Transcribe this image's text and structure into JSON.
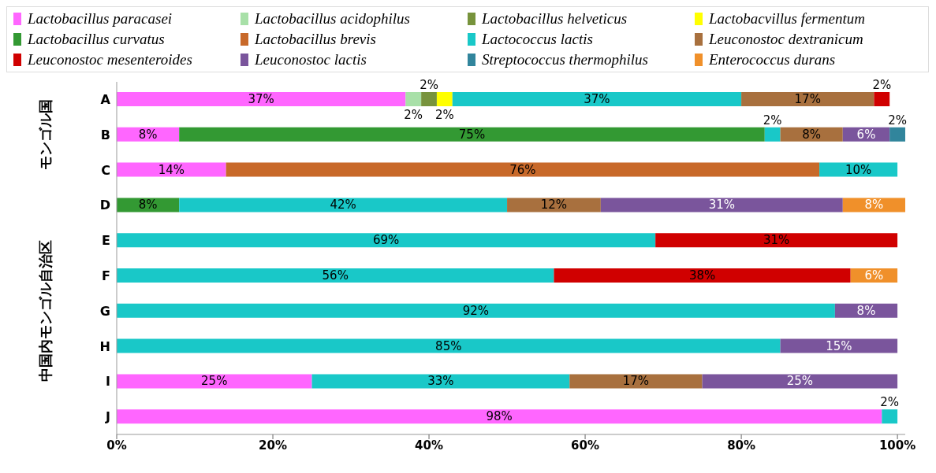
{
  "chart_data": {
    "type": "bar",
    "orientation": "horizontal",
    "stacked": true,
    "categories": [
      "A",
      "B",
      "C",
      "D",
      "E",
      "F",
      "G",
      "H",
      "I",
      "J"
    ],
    "xlim": [
      0,
      101
    ],
    "xticks": [
      {
        "value": 0,
        "label": "0%"
      },
      {
        "value": 20,
        "label": "20%"
      },
      {
        "value": 40,
        "label": "40%"
      },
      {
        "value": 60,
        "label": "60%"
      },
      {
        "value": 80,
        "label": "80%"
      },
      {
        "value": 100,
        "label": "100%"
      }
    ],
    "legend": "top",
    "grid": false,
    "annotations": [
      "モンゴル国",
      "中国内モンゴル自治区"
    ],
    "series": [
      {
        "name": "Lactobacillus paracasei",
        "color": "#ff66ff",
        "values": [
          37,
          8,
          14,
          null,
          null,
          null,
          null,
          null,
          25,
          98
        ],
        "value_labels": [
          "37%",
          "8%",
          "14%",
          null,
          null,
          null,
          null,
          null,
          "25%",
          "98%"
        ]
      },
      {
        "name": "Lactobacillus acidophilus",
        "color": "#a8e0a8",
        "values": [
          2,
          null,
          null,
          null,
          null,
          null,
          null,
          null,
          null,
          null
        ],
        "value_labels": [
          "2%",
          null,
          null,
          null,
          null,
          null,
          null,
          null,
          null,
          null
        ]
      },
      {
        "name": "Lactobacillus helveticus",
        "color": "#77933c",
        "values": [
          2,
          null,
          null,
          null,
          null,
          null,
          null,
          null,
          null,
          null
        ],
        "value_labels": [
          "2%",
          null,
          null,
          null,
          null,
          null,
          null,
          null,
          null,
          null
        ]
      },
      {
        "name": "Lactobacvillus fermentum",
        "color": "#ffff00",
        "values": [
          2,
          null,
          null,
          null,
          null,
          null,
          null,
          null,
          null,
          null
        ],
        "value_labels": [
          "2%",
          null,
          null,
          null,
          null,
          null,
          null,
          null,
          null,
          null
        ]
      },
      {
        "name": "Lactobacillus curvatus",
        "color": "#339933",
        "values": [
          null,
          75,
          null,
          8,
          null,
          null,
          null,
          null,
          null,
          null
        ],
        "value_labels": [
          null,
          "75%",
          null,
          "8%",
          null,
          null,
          null,
          null,
          null,
          null
        ]
      },
      {
        "name": "Lactobacillus brevis",
        "color": "#c8692a",
        "values": [
          null,
          null,
          76,
          null,
          null,
          null,
          null,
          null,
          null,
          null
        ],
        "value_labels": [
          null,
          null,
          "76%",
          null,
          null,
          null,
          null,
          null,
          null,
          null
        ]
      },
      {
        "name": "Lactococcus lactis",
        "color": "#19c8c8",
        "values": [
          37,
          2,
          10,
          42,
          69,
          56,
          92,
          85,
          33,
          2
        ],
        "value_labels": [
          "37%",
          "2%",
          "10%",
          "42%",
          "69%",
          "56%",
          "92%",
          "85%",
          "33%",
          "2%"
        ]
      },
      {
        "name": "Leuconostoc dextranicum",
        "color": "#a8703e",
        "values": [
          17,
          8,
          null,
          12,
          null,
          null,
          null,
          null,
          17,
          null
        ],
        "value_labels": [
          "17%",
          "8%",
          null,
          "12%",
          null,
          null,
          null,
          null,
          "17%",
          null
        ]
      },
      {
        "name": "Leuconostoc mesenteroides",
        "color": "#d00000",
        "values": [
          2,
          null,
          null,
          null,
          31,
          38,
          null,
          null,
          null,
          null
        ],
        "value_labels": [
          "2%",
          null,
          null,
          null,
          "31%",
          "38%",
          null,
          null,
          null,
          null
        ]
      },
      {
        "name": "Leuconostoc lactis",
        "color": "#7a559c",
        "values": [
          null,
          6,
          null,
          31,
          null,
          null,
          8,
          15,
          25,
          null
        ],
        "value_labels": [
          null,
          "6%",
          null,
          "31%",
          null,
          null,
          "8%",
          "15%",
          "25%",
          null
        ]
      },
      {
        "name": "Streptococcus thermophilus",
        "color": "#31859c",
        "values": [
          null,
          2,
          null,
          null,
          null,
          null,
          null,
          null,
          null,
          null
        ],
        "value_labels": [
          null,
          "2%",
          null,
          null,
          null,
          null,
          null,
          null,
          null,
          null
        ]
      },
      {
        "name": "Enterococcus durans",
        "color": "#f0902a",
        "values": [
          null,
          null,
          null,
          8,
          null,
          6,
          null,
          null,
          null,
          null
        ],
        "value_labels": [
          null,
          null,
          null,
          "8%",
          null,
          "6%",
          null,
          null,
          null,
          null
        ]
      }
    ]
  }
}
